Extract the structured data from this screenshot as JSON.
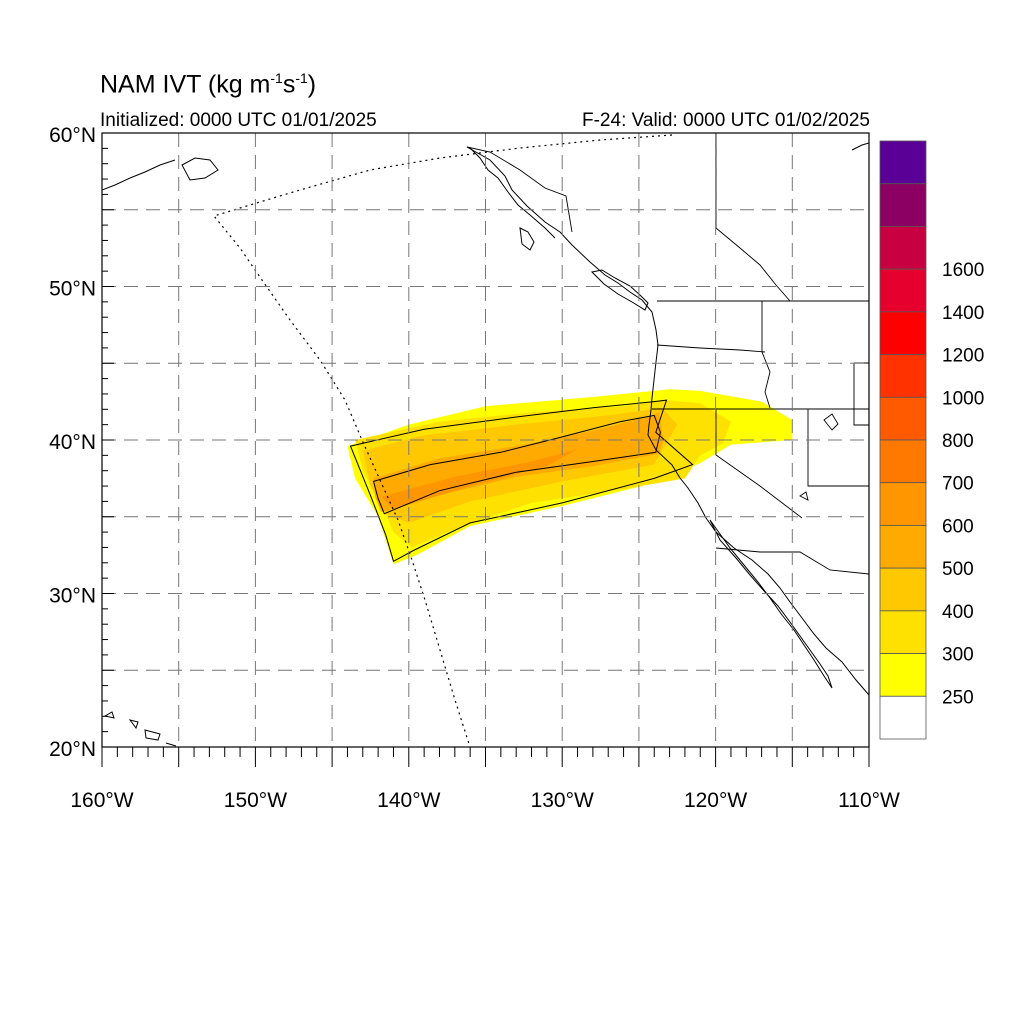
{
  "title": {
    "prefix": "NAM IVT (kg m",
    "sup1": "-1",
    "mid": "s",
    "sup2": "-1",
    "suffix": ")"
  },
  "initialized": "Initialized: 0000 UTC 01/01/2025",
  "valid": "F-24: Valid: 0000 UTC 01/02/2025",
  "map": {
    "lat_range": [
      20,
      60
    ],
    "lon_range": [
      -160,
      -110
    ],
    "grid": "dashed",
    "lat_ticks": [
      {
        "value": 60,
        "label": "60°N"
      },
      {
        "value": 50,
        "label": "50°N"
      },
      {
        "value": 40,
        "label": "40°N"
      },
      {
        "value": 30,
        "label": "30°N"
      },
      {
        "value": 20,
        "label": "20°N"
      }
    ],
    "lon_ticks": [
      {
        "value": -160,
        "label": "160°W"
      },
      {
        "value": -150,
        "label": "150°W"
      },
      {
        "value": -140,
        "label": "140°W"
      },
      {
        "value": -130,
        "label": "130°W"
      },
      {
        "value": -120,
        "label": "120°W"
      },
      {
        "value": -110,
        "label": "110°W"
      }
    ],
    "ivt_field": {
      "band_250": [
        [
          -144,
          39.6
        ],
        [
          -140,
          41
        ],
        [
          -135,
          42.2
        ],
        [
          -128,
          42.8
        ],
        [
          -123,
          43.3
        ],
        [
          -121,
          43.2
        ],
        [
          -117,
          42.5
        ],
        [
          -115,
          41.3
        ],
        [
          -115,
          40
        ],
        [
          -119,
          39.7
        ],
        [
          -121,
          38.5
        ],
        [
          -124,
          37.2
        ],
        [
          -130,
          35.7
        ],
        [
          -136,
          34.4
        ],
        [
          -139.5,
          32.5
        ],
        [
          -141,
          31.9
        ],
        [
          -142,
          35
        ],
        [
          -143.5,
          37.5
        ]
      ],
      "band_300": [
        [
          -143.5,
          40
        ],
        [
          -138,
          41.2
        ],
        [
          -132,
          41.8
        ],
        [
          -126,
          42.2
        ],
        [
          -123.3,
          42.6
        ],
        [
          -121,
          42.4
        ],
        [
          -119,
          41.2
        ],
        [
          -119.5,
          39.8
        ],
        [
          -121,
          39
        ],
        [
          -122,
          37.5
        ],
        [
          -126,
          36.8
        ],
        [
          -132,
          35.9
        ],
        [
          -137,
          34.2
        ],
        [
          -139.8,
          33
        ],
        [
          -141,
          34
        ],
        [
          -142,
          36.3
        ],
        [
          -143,
          38
        ]
      ],
      "band_400": [
        [
          -143,
          39.3
        ],
        [
          -139,
          40.3
        ],
        [
          -133,
          41
        ],
        [
          -127,
          41.6
        ],
        [
          -123.5,
          42.1
        ],
        [
          -122.5,
          41
        ],
        [
          -123.5,
          39.3
        ],
        [
          -124,
          38.4
        ],
        [
          -130,
          37.3
        ],
        [
          -136,
          36
        ],
        [
          -140,
          34.6
        ],
        [
          -141.5,
          35.2
        ],
        [
          -142.5,
          37
        ]
      ],
      "band_500": [
        [
          -142.3,
          37.5
        ],
        [
          -138,
          38.8
        ],
        [
          -133,
          39.6
        ],
        [
          -128,
          40.6
        ],
        [
          -124.5,
          41.5
        ],
        [
          -123.7,
          41.8
        ],
        [
          -123.4,
          40
        ],
        [
          -123.7,
          39.1
        ],
        [
          -128,
          38.3
        ],
        [
          -133,
          37.6
        ],
        [
          -138,
          36.4
        ],
        [
          -141.8,
          35.3
        ],
        [
          -142.2,
          36.3
        ]
      ],
      "band_600": [
        [
          -141.8,
          36.3
        ],
        [
          -137,
          37.6
        ],
        [
          -132,
          38.6
        ],
        [
          -129,
          39.4
        ],
        [
          -131,
          38.3
        ],
        [
          -136,
          37
        ],
        [
          -141,
          35.5
        ]
      ],
      "contour_250": [
        [
          -143.8,
          39.6
        ],
        [
          -139,
          40.7
        ],
        [
          -133,
          41.5
        ],
        [
          -128,
          42.1
        ],
        [
          -124,
          42.5
        ],
        [
          -123.2,
          42.6
        ],
        [
          -123.9,
          40.5
        ],
        [
          -121.5,
          38.4
        ],
        [
          -124,
          37.5
        ],
        [
          -130,
          35.9
        ],
        [
          -136,
          34.6
        ],
        [
          -139.7,
          32.8
        ],
        [
          -141,
          32.1
        ],
        [
          -141.5,
          33.8
        ],
        [
          -142.5,
          36.4
        ]
      ],
      "contour_500": [
        [
          -142.3,
          37.3
        ],
        [
          -138.6,
          38.4
        ],
        [
          -134,
          39.2
        ],
        [
          -130,
          40.2
        ],
        [
          -126.2,
          41.2
        ],
        [
          -124,
          41.6
        ],
        [
          -123.6,
          40.5
        ],
        [
          -123.9,
          39.2
        ],
        [
          -128,
          38.6
        ],
        [
          -133,
          37.9
        ],
        [
          -138,
          36.7
        ],
        [
          -141.6,
          35.2
        ],
        [
          -142,
          36.2
        ]
      ]
    },
    "colorbar": {
      "colors": [
        "#ffffff",
        "#ffff00",
        "#ffe100",
        "#ffc800",
        "#ffaa00",
        "#ff9600",
        "#ff7800",
        "#ff5a00",
        "#ff3200",
        "#ff0000",
        "#e6002d",
        "#c80041",
        "#8c0064",
        "#5a0096"
      ],
      "labels": [
        "250",
        "300",
        "400",
        "500",
        "600",
        "700",
        "800",
        "1000",
        "1200",
        "1400",
        "1600"
      ]
    }
  }
}
